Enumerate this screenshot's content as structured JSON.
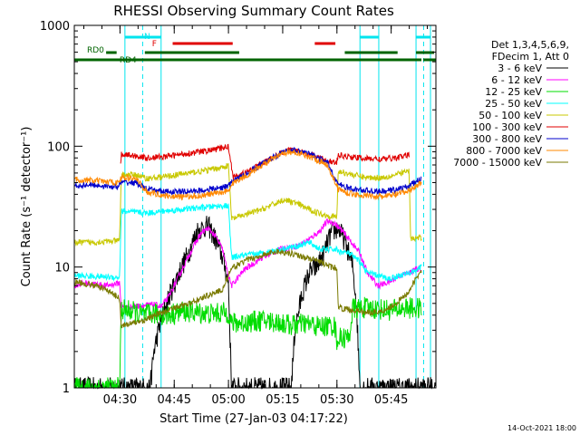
{
  "chart_data": {
    "type": "line",
    "title": "RHESSI Observing Summary Count Rates",
    "xlabel": "Start Time (27-Jan-03 04:17:22)",
    "ylabel": "Count Rate (s⁻¹ detector⁻¹)",
    "yscale": "log",
    "x_units": "minutes after 04:17:22",
    "xlim": [
      0,
      100
    ],
    "ylim": [
      1,
      1000
    ],
    "x_ticks": [
      {
        "value": 12.63,
        "label": "04:30"
      },
      {
        "value": 27.63,
        "label": "04:45"
      },
      {
        "value": 42.63,
        "label": "05:00"
      },
      {
        "value": 57.63,
        "label": "05:15"
      },
      {
        "value": 72.63,
        "label": "05:30"
      },
      {
        "value": 87.63,
        "label": "05:45"
      }
    ],
    "y_ticks": [
      {
        "value": 1,
        "label": "1"
      },
      {
        "value": 10,
        "label": "10"
      },
      {
        "value": 100,
        "label": "100"
      },
      {
        "value": 1000,
        "label": "1000"
      }
    ],
    "legend_header": [
      "Det 1,3,4,5,6,9,",
      "FDecim 1, Att 0"
    ],
    "night_intervals": [
      [
        14,
        24
      ],
      [
        79,
        84.2
      ],
      [
        94.5,
        98.5
      ]
    ],
    "night_bar_color": "#00e5ee",
    "saa_segments": [
      [
        8.8,
        11.7
      ],
      [
        19.5,
        45.6
      ],
      [
        74.8,
        89.4
      ],
      [
        94.5,
        99.5
      ]
    ],
    "saa_bar_color": "#006400",
    "flare_segments": [
      [
        27.2,
        43.8
      ],
      [
        66.5,
        72.2
      ]
    ],
    "flare_bar_color": "#e00000",
    "dashed_markers": [
      18.9,
      96.6
    ],
    "annotations": {
      "night": "N",
      "flare": "F",
      "rd0": "RD0",
      "rd4": "RD4"
    },
    "series": [
      {
        "name": "3 - 6 keV",
        "color": "#000000",
        "style": "noisy",
        "points": [
          [
            0,
            1
          ],
          [
            21,
            1
          ],
          [
            22,
            2
          ],
          [
            23.5,
            3.2
          ],
          [
            26,
            5.5
          ],
          [
            29,
            9
          ],
          [
            32,
            14
          ],
          [
            34,
            20
          ],
          [
            37,
            22
          ],
          [
            39,
            17
          ],
          [
            41,
            12
          ],
          [
            42.6,
            7.5
          ],
          [
            43.5,
            1
          ],
          [
            60,
            1
          ],
          [
            61,
            3
          ],
          [
            63,
            6
          ],
          [
            65,
            9
          ],
          [
            67,
            10
          ],
          [
            69,
            13
          ],
          [
            71,
            19
          ],
          [
            73,
            21
          ],
          [
            75,
            16
          ],
          [
            77,
            10
          ],
          [
            78,
            5
          ],
          [
            79,
            1
          ],
          [
            100,
            1
          ]
        ]
      },
      {
        "name": "6 - 12 keV",
        "color": "#ff00ff",
        "style": "noisy",
        "points": [
          [
            0,
            7
          ],
          [
            3,
            7.4
          ],
          [
            6,
            7.2
          ],
          [
            9,
            7
          ],
          [
            12.5,
            7.4
          ],
          [
            13,
            4.6
          ],
          [
            16,
            4.7
          ],
          [
            19,
            4.8
          ],
          [
            22,
            4.9
          ],
          [
            24,
            4.7
          ],
          [
            26,
            5.6
          ],
          [
            29,
            8.5
          ],
          [
            32,
            13
          ],
          [
            35,
            19
          ],
          [
            37,
            21
          ],
          [
            39,
            18
          ],
          [
            41,
            14
          ],
          [
            42.6,
            8.5
          ],
          [
            43.5,
            7
          ],
          [
            47,
            9.5
          ],
          [
            52,
            12
          ],
          [
            57,
            14
          ],
          [
            62,
            15
          ],
          [
            65,
            17
          ],
          [
            68,
            20
          ],
          [
            70,
            24
          ],
          [
            72,
            23
          ],
          [
            74,
            20
          ],
          [
            76,
            17
          ],
          [
            79,
            13
          ],
          [
            81,
            9
          ],
          [
            84,
            7
          ],
          [
            87,
            7.5
          ],
          [
            90,
            8.5
          ],
          [
            93,
            9
          ],
          [
            94,
            9.5
          ],
          [
            96,
            9.8
          ]
        ]
      },
      {
        "name": "12 - 25 keV",
        "color": "#00dd00",
        "style": "noisy",
        "points": [
          [
            0,
            1
          ],
          [
            4,
            1
          ],
          [
            5,
            1
          ],
          [
            10,
            1
          ],
          [
            11,
            1
          ],
          [
            12.5,
            1
          ],
          [
            13,
            4.5
          ],
          [
            16,
            4.3
          ],
          [
            19,
            4
          ],
          [
            22,
            4.1
          ],
          [
            26,
            4
          ],
          [
            30,
            4.3
          ],
          [
            34,
            4.2
          ],
          [
            38,
            4.1
          ],
          [
            42.6,
            4.2
          ],
          [
            43.5,
            3.4
          ],
          [
            48,
            3.5
          ],
          [
            52,
            3.6
          ],
          [
            56,
            3.5
          ],
          [
            60,
            3.3
          ],
          [
            64,
            3.4
          ],
          [
            68,
            3.2
          ],
          [
            72,
            3.3
          ],
          [
            72.6,
            2.5
          ],
          [
            74,
            2.6
          ],
          [
            76,
            2.6
          ],
          [
            77,
            4.5
          ],
          [
            80,
            4.6
          ],
          [
            84,
            4.5
          ],
          [
            88,
            4.4
          ],
          [
            92,
            4.6
          ],
          [
            96,
            4.5
          ]
        ]
      },
      {
        "name": "25 - 50 keV",
        "color": "#00ffff",
        "style": "noisy",
        "points": [
          [
            0,
            8.5
          ],
          [
            12.5,
            8.2
          ],
          [
            13,
            29
          ],
          [
            20,
            28
          ],
          [
            25,
            29
          ],
          [
            30,
            30
          ],
          [
            35,
            31
          ],
          [
            40,
            32
          ],
          [
            42.6,
            32
          ],
          [
            43.5,
            12
          ],
          [
            47,
            12.5
          ],
          [
            52,
            13
          ],
          [
            57,
            14
          ],
          [
            62,
            15
          ],
          [
            65,
            16
          ],
          [
            68,
            14
          ],
          [
            72,
            14
          ],
          [
            72.6,
            14
          ],
          [
            73,
            13.5
          ],
          [
            76,
            13
          ],
          [
            79,
            11
          ],
          [
            81,
            9
          ],
          [
            84,
            8.5
          ],
          [
            87,
            8
          ],
          [
            90,
            8.5
          ],
          [
            93,
            9
          ],
          [
            96,
            10
          ]
        ]
      },
      {
        "name": "50 - 100 keV",
        "color": "#c8c800",
        "style": "noisy",
        "points": [
          [
            0,
            16
          ],
          [
            5,
            16
          ],
          [
            12.5,
            16.5
          ],
          [
            13,
            58
          ],
          [
            17,
            58
          ],
          [
            20,
            54
          ],
          [
            25,
            56
          ],
          [
            30,
            59
          ],
          [
            35,
            62
          ],
          [
            40,
            66
          ],
          [
            42.6,
            69
          ],
          [
            43.5,
            25
          ],
          [
            47,
            27
          ],
          [
            52,
            30
          ],
          [
            56,
            34
          ],
          [
            58,
            36
          ],
          [
            61,
            34
          ],
          [
            65,
            30
          ],
          [
            69,
            27
          ],
          [
            72.6,
            26
          ],
          [
            73,
            62
          ],
          [
            77,
            58
          ],
          [
            81,
            55
          ],
          [
            85,
            55
          ],
          [
            89,
            58
          ],
          [
            92,
            62
          ],
          [
            92.6,
            62
          ],
          [
            93,
            17
          ],
          [
            96,
            17.5
          ]
        ]
      },
      {
        "name": "100 - 300 keV",
        "color": "#e00000",
        "style": "noisy",
        "points": [
          [
            12.8,
            72
          ],
          [
            13,
            86
          ],
          [
            16,
            84
          ],
          [
            20,
            80
          ],
          [
            25,
            82
          ],
          [
            30,
            86
          ],
          [
            35,
            90
          ],
          [
            40,
            95
          ],
          [
            42.6,
            100
          ],
          [
            44,
            55
          ],
          [
            48,
            62
          ],
          [
            52,
            72
          ],
          [
            56,
            84
          ],
          [
            59,
            93
          ],
          [
            62,
            92
          ],
          [
            66,
            84
          ],
          [
            70,
            76
          ],
          [
            72.5,
            72
          ],
          [
            73,
            84
          ],
          [
            77,
            81
          ],
          [
            81,
            79
          ],
          [
            85,
            78
          ],
          [
            89,
            80
          ],
          [
            92,
            84
          ],
          [
            92.6,
            85
          ]
        ]
      },
      {
        "name": "300 - 800 keV",
        "color": "#0000cc",
        "style": "noisy",
        "points": [
          [
            0,
            47
          ],
          [
            4,
            48
          ],
          [
            8,
            47
          ],
          [
            12,
            46
          ],
          [
            13,
            50
          ],
          [
            17,
            50
          ],
          [
            20,
            44
          ],
          [
            25,
            42
          ],
          [
            30,
            42
          ],
          [
            35,
            43
          ],
          [
            40,
            45
          ],
          [
            42.6,
            47
          ],
          [
            44,
            52
          ],
          [
            48,
            60
          ],
          [
            52,
            72
          ],
          [
            56,
            84
          ],
          [
            59,
            93
          ],
          [
            62,
            92
          ],
          [
            66,
            84
          ],
          [
            70,
            73
          ],
          [
            73,
            48
          ],
          [
            77,
            44
          ],
          [
            81,
            43
          ],
          [
            85,
            42
          ],
          [
            89,
            44
          ],
          [
            92,
            46
          ],
          [
            96,
            54
          ]
        ]
      },
      {
        "name": "800 - 7000 keV",
        "color": "#ff8800",
        "style": "noisy",
        "points": [
          [
            0,
            53
          ],
          [
            4,
            52
          ],
          [
            8,
            51
          ],
          [
            12,
            50
          ],
          [
            13,
            55
          ],
          [
            17,
            54
          ],
          [
            20,
            42
          ],
          [
            25,
            39
          ],
          [
            30,
            38
          ],
          [
            35,
            39
          ],
          [
            40,
            41
          ],
          [
            42.6,
            43
          ],
          [
            44,
            50
          ],
          [
            48,
            58
          ],
          [
            52,
            70
          ],
          [
            56,
            82
          ],
          [
            59,
            90
          ],
          [
            62,
            88
          ],
          [
            66,
            80
          ],
          [
            70,
            70
          ],
          [
            73,
            44
          ],
          [
            77,
            40
          ],
          [
            81,
            39
          ],
          [
            85,
            38
          ],
          [
            89,
            40
          ],
          [
            92,
            42
          ],
          [
            96,
            50
          ]
        ]
      },
      {
        "name": "7000 - 15000 keV",
        "color": "#7a7a00",
        "style": "noisy",
        "points": [
          [
            0,
            7.5
          ],
          [
            3,
            7.3
          ],
          [
            6,
            7
          ],
          [
            9,
            6.5
          ],
          [
            12.5,
            5.5
          ],
          [
            13,
            3.3
          ],
          [
            16,
            3.4
          ],
          [
            20,
            3.7
          ],
          [
            24,
            4.2
          ],
          [
            28,
            4.6
          ],
          [
            32,
            5
          ],
          [
            35,
            5.5
          ],
          [
            38,
            6
          ],
          [
            41,
            6.5
          ],
          [
            42.6,
            8.5
          ],
          [
            44,
            10
          ],
          [
            48,
            11.5
          ],
          [
            52,
            12.5
          ],
          [
            56,
            13.5
          ],
          [
            60,
            13
          ],
          [
            64,
            12
          ],
          [
            68,
            11
          ],
          [
            71,
            10
          ],
          [
            72.6,
            9.8
          ],
          [
            73,
            4.6
          ],
          [
            77,
            4.4
          ],
          [
            81,
            4.2
          ],
          [
            85,
            4.3
          ],
          [
            89,
            5
          ],
          [
            92,
            6
          ],
          [
            94,
            7.5
          ],
          [
            96,
            9.5
          ]
        ]
      }
    ]
  },
  "footer": {
    "date_stamp": "14-Oct-2021 18:00"
  }
}
